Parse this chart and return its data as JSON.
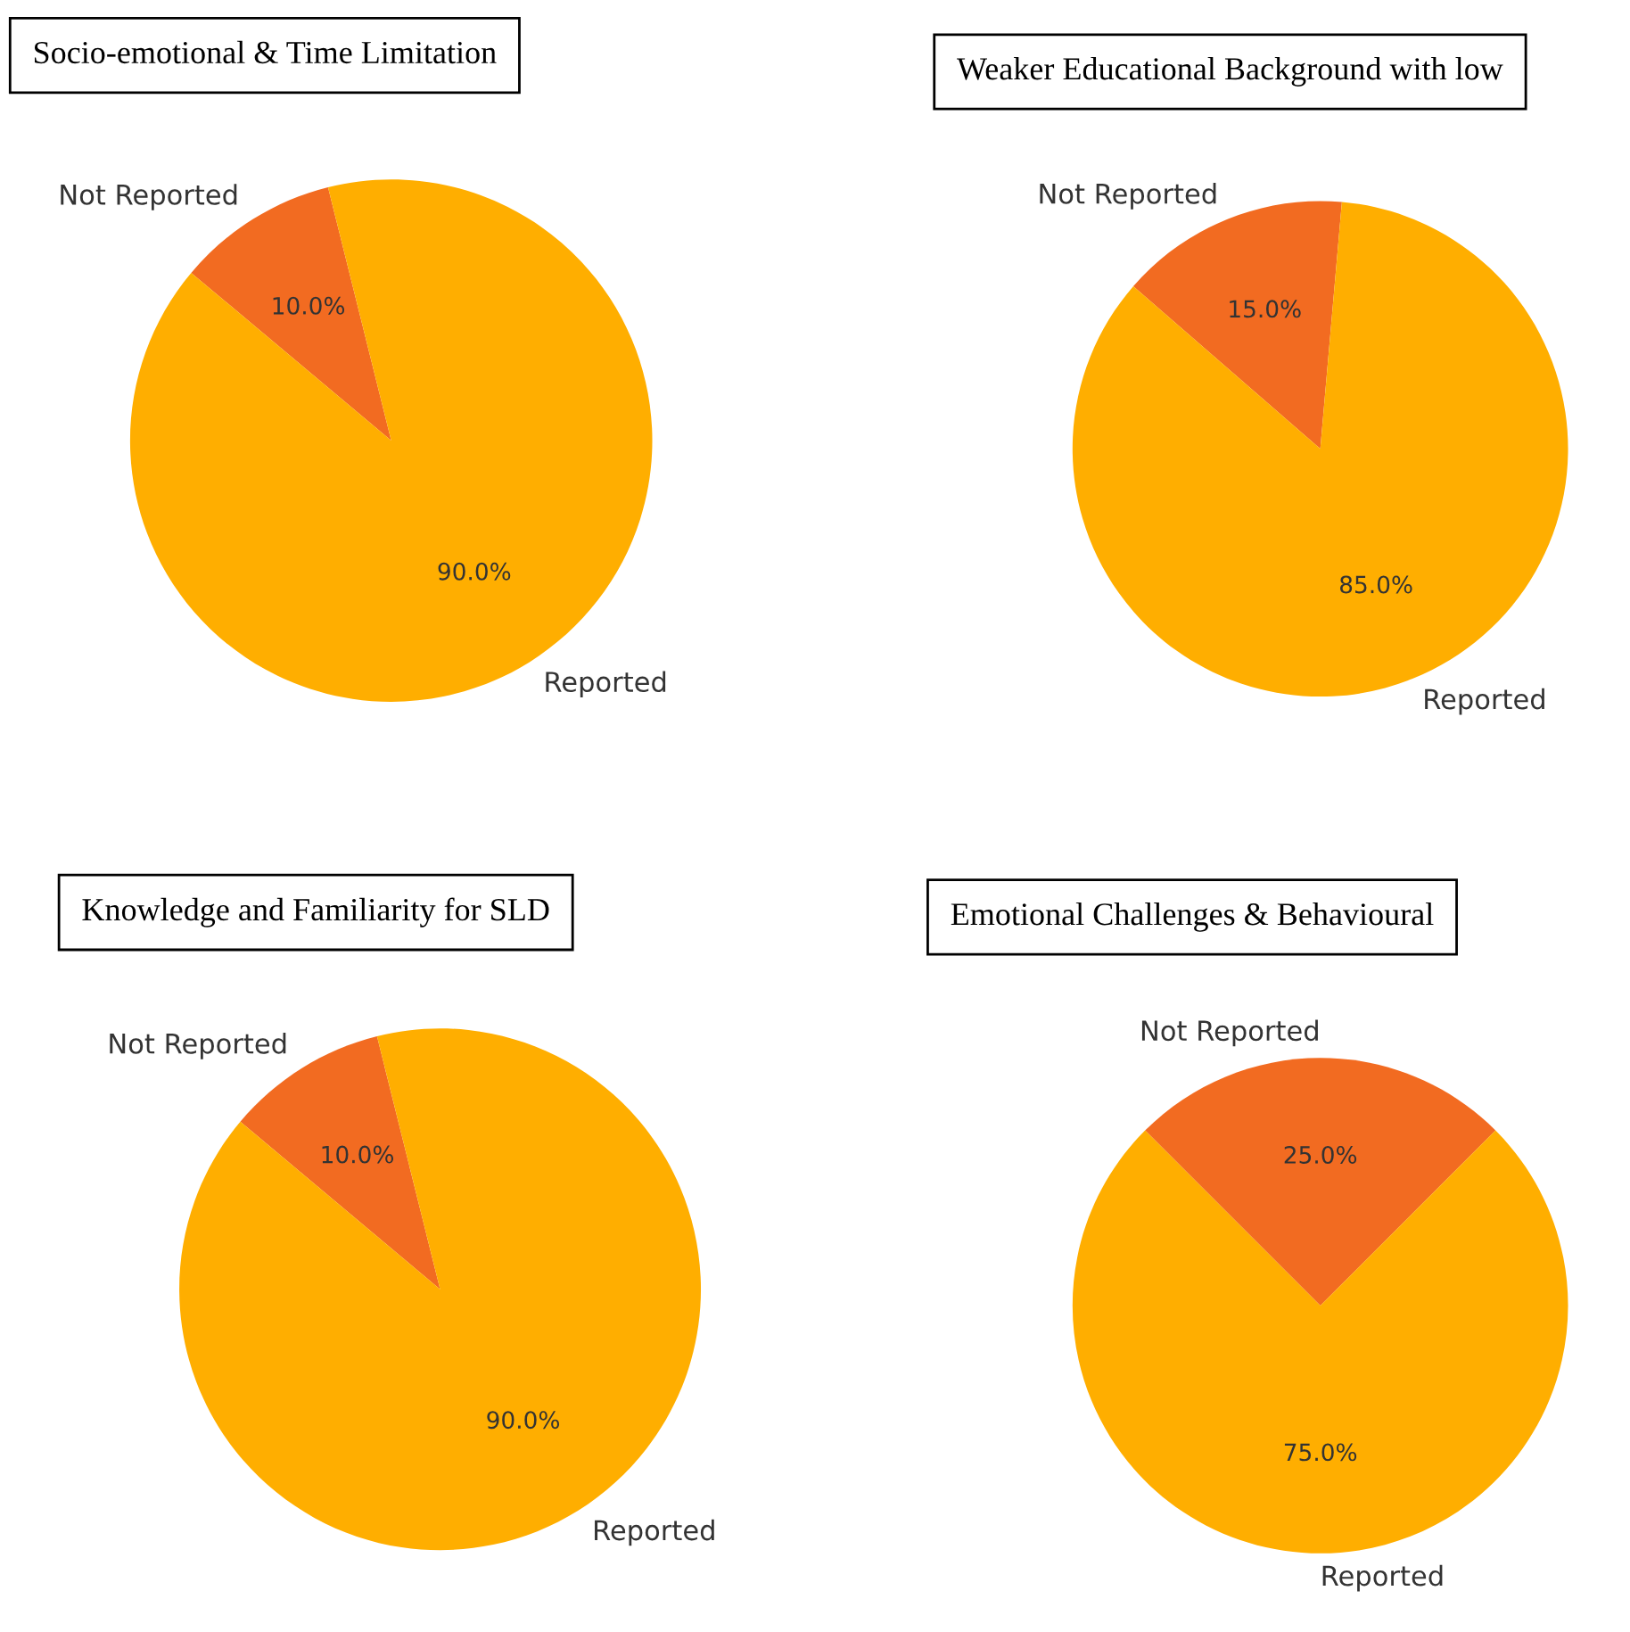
{
  "chart_data": [
    {
      "type": "pie",
      "title": "Socio-emotional & Time Limitation",
      "categories": [
        "Not Reported",
        "Reported"
      ],
      "values": [
        10,
        90
      ],
      "value_labels": [
        "10.0%",
        "90.0%"
      ],
      "colors": [
        "#f26b21",
        "#ffae00"
      ]
    },
    {
      "type": "pie",
      "title": "Weaker Educational Background with low",
      "categories": [
        "Not Reported",
        "Reported"
      ],
      "values": [
        15,
        85
      ],
      "value_labels": [
        "15.0%",
        "85.0%"
      ],
      "colors": [
        "#f26b21",
        "#ffae00"
      ]
    },
    {
      "type": "pie",
      "title": "Knowledge and Familiarity for SLD",
      "categories": [
        "Not Reported",
        "Reported"
      ],
      "values": [
        10,
        90
      ],
      "value_labels": [
        "10.0%",
        "90.0%"
      ],
      "colors": [
        "#f26b21",
        "#ffae00"
      ]
    },
    {
      "type": "pie",
      "title": "Emotional Challenges & Behavioural",
      "categories": [
        "Not Reported",
        "Reported"
      ],
      "values": [
        25,
        75
      ],
      "value_labels": [
        "25.0%",
        "75.0%"
      ],
      "colors": [
        "#f26b21",
        "#ffae00"
      ]
    }
  ]
}
